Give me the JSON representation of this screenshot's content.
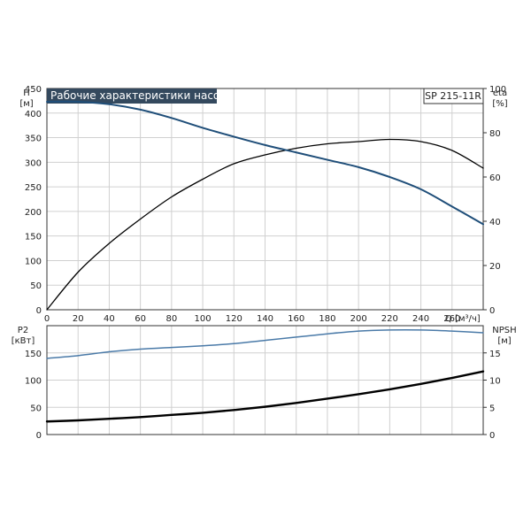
{
  "title": "Рабочие характеристики насоса",
  "model": "SP 215-11R",
  "colors": {
    "head": "#1f4e79",
    "eta": "#000000",
    "p2": "#4a7aa8",
    "npsh": "#000000",
    "grid": "#d0d0d0",
    "title_bg": "#34495e"
  },
  "chart_data": [
    {
      "type": "line",
      "panel": "top",
      "xlabel": "Q [м³/ч]",
      "xlim": [
        0,
        280
      ],
      "x_ticks": [
        0,
        20,
        40,
        60,
        80,
        100,
        120,
        140,
        160,
        180,
        200,
        220,
        240,
        260
      ],
      "y_left": {
        "label_line1": "H",
        "label_line2": "[м]",
        "ylim": [
          0,
          450
        ],
        "ticks": [
          0,
          50,
          100,
          150,
          200,
          250,
          300,
          350,
          400,
          450
        ]
      },
      "y_right": {
        "label_line1": "eta",
        "label_line2": "[%]",
        "ylim": [
          0,
          100
        ],
        "ticks": [
          0,
          20,
          40,
          60,
          80,
          100
        ]
      },
      "grid": true,
      "series": [
        {
          "axis": "left",
          "x": [
            0,
            20,
            40,
            60,
            80,
            100,
            120,
            140,
            160,
            180,
            200,
            220,
            240,
            260,
            280
          ],
          "values": [
            423,
            423,
            418,
            407,
            390,
            370,
            352,
            335,
            320,
            305,
            290,
            270,
            245,
            210,
            174
          ]
        },
        {
          "axis": "right",
          "x": [
            0,
            20,
            40,
            60,
            80,
            100,
            120,
            140,
            160,
            180,
            200,
            220,
            240,
            260,
            280
          ],
          "values": [
            0,
            17,
            30,
            41,
            51,
            59,
            66,
            70,
            73,
            75,
            76,
            77,
            76,
            72,
            64
          ]
        }
      ]
    },
    {
      "type": "line",
      "panel": "bottom",
      "xlim": [
        0,
        280
      ],
      "y_left": {
        "label_line1": "P2",
        "label_line2": "[кВт]",
        "ylim": [
          0,
          200
        ],
        "ticks": [
          0,
          50,
          100,
          150
        ]
      },
      "y_right": {
        "label_line1": "NPSH",
        "label_line2": "[м]",
        "ylim": [
          0,
          20
        ],
        "ticks": [
          0,
          5,
          10,
          15
        ]
      },
      "grid": true,
      "series": [
        {
          "axis": "left",
          "x": [
            0,
            20,
            40,
            60,
            80,
            100,
            120,
            140,
            160,
            180,
            200,
            220,
            240,
            260,
            280
          ],
          "values": [
            140,
            145,
            152,
            157,
            160,
            163,
            167,
            173,
            179,
            185,
            190,
            192,
            192,
            190,
            187
          ]
        },
        {
          "axis": "right",
          "x": [
            0,
            20,
            40,
            60,
            80,
            100,
            120,
            140,
            160,
            180,
            200,
            220,
            240,
            260,
            280
          ],
          "values": [
            2.4,
            2.6,
            2.9,
            3.2,
            3.6,
            4.0,
            4.5,
            5.1,
            5.8,
            6.6,
            7.4,
            8.3,
            9.3,
            10.4,
            11.6
          ]
        }
      ]
    }
  ]
}
